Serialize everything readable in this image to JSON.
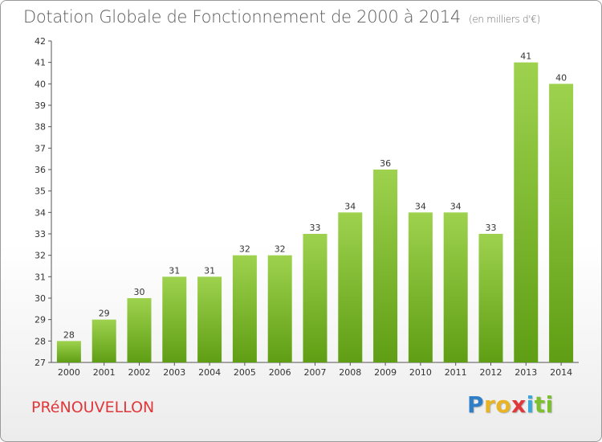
{
  "header": {
    "title": "Dotation Globale de Fonctionnement de 2000 à 2014",
    "subtitle": "(en milliers d'€)"
  },
  "footer": {
    "city": "PRéNOUVELLON",
    "logo_letters": [
      {
        "ch": "P",
        "color": "#2e7fc8"
      },
      {
        "ch": "r",
        "color": "#e8b423"
      },
      {
        "ch": "o",
        "color": "#e8b423"
      },
      {
        "ch": "x",
        "color": "#e0383a"
      },
      {
        "ch": "i",
        "color": "#3aa8d8"
      },
      {
        "ch": "t",
        "color": "#7cbf2f"
      },
      {
        "ch": "i",
        "color": "#7cbf2f"
      }
    ]
  },
  "chart_data": {
    "type": "bar",
    "title": "Dotation Globale de Fonctionnement de 2000 à 2014",
    "subtitle": "(en milliers d'€)",
    "xlabel": "",
    "ylabel": "",
    "categories": [
      "2000",
      "2001",
      "2002",
      "2003",
      "2004",
      "2005",
      "2006",
      "2007",
      "2008",
      "2009",
      "2010",
      "2011",
      "2012",
      "2013",
      "2014"
    ],
    "values": [
      28,
      29,
      30,
      31,
      31,
      32,
      32,
      33,
      34,
      36,
      34,
      34,
      33,
      41,
      40
    ],
    "ylim": [
      27,
      42
    ],
    "yticks": [
      27,
      28,
      29,
      30,
      31,
      32,
      33,
      34,
      35,
      36,
      37,
      38,
      39,
      40,
      41,
      42
    ],
    "grid": false,
    "bar_color_top": "#9ed24e",
    "bar_color_bottom": "#5f9e14"
  }
}
